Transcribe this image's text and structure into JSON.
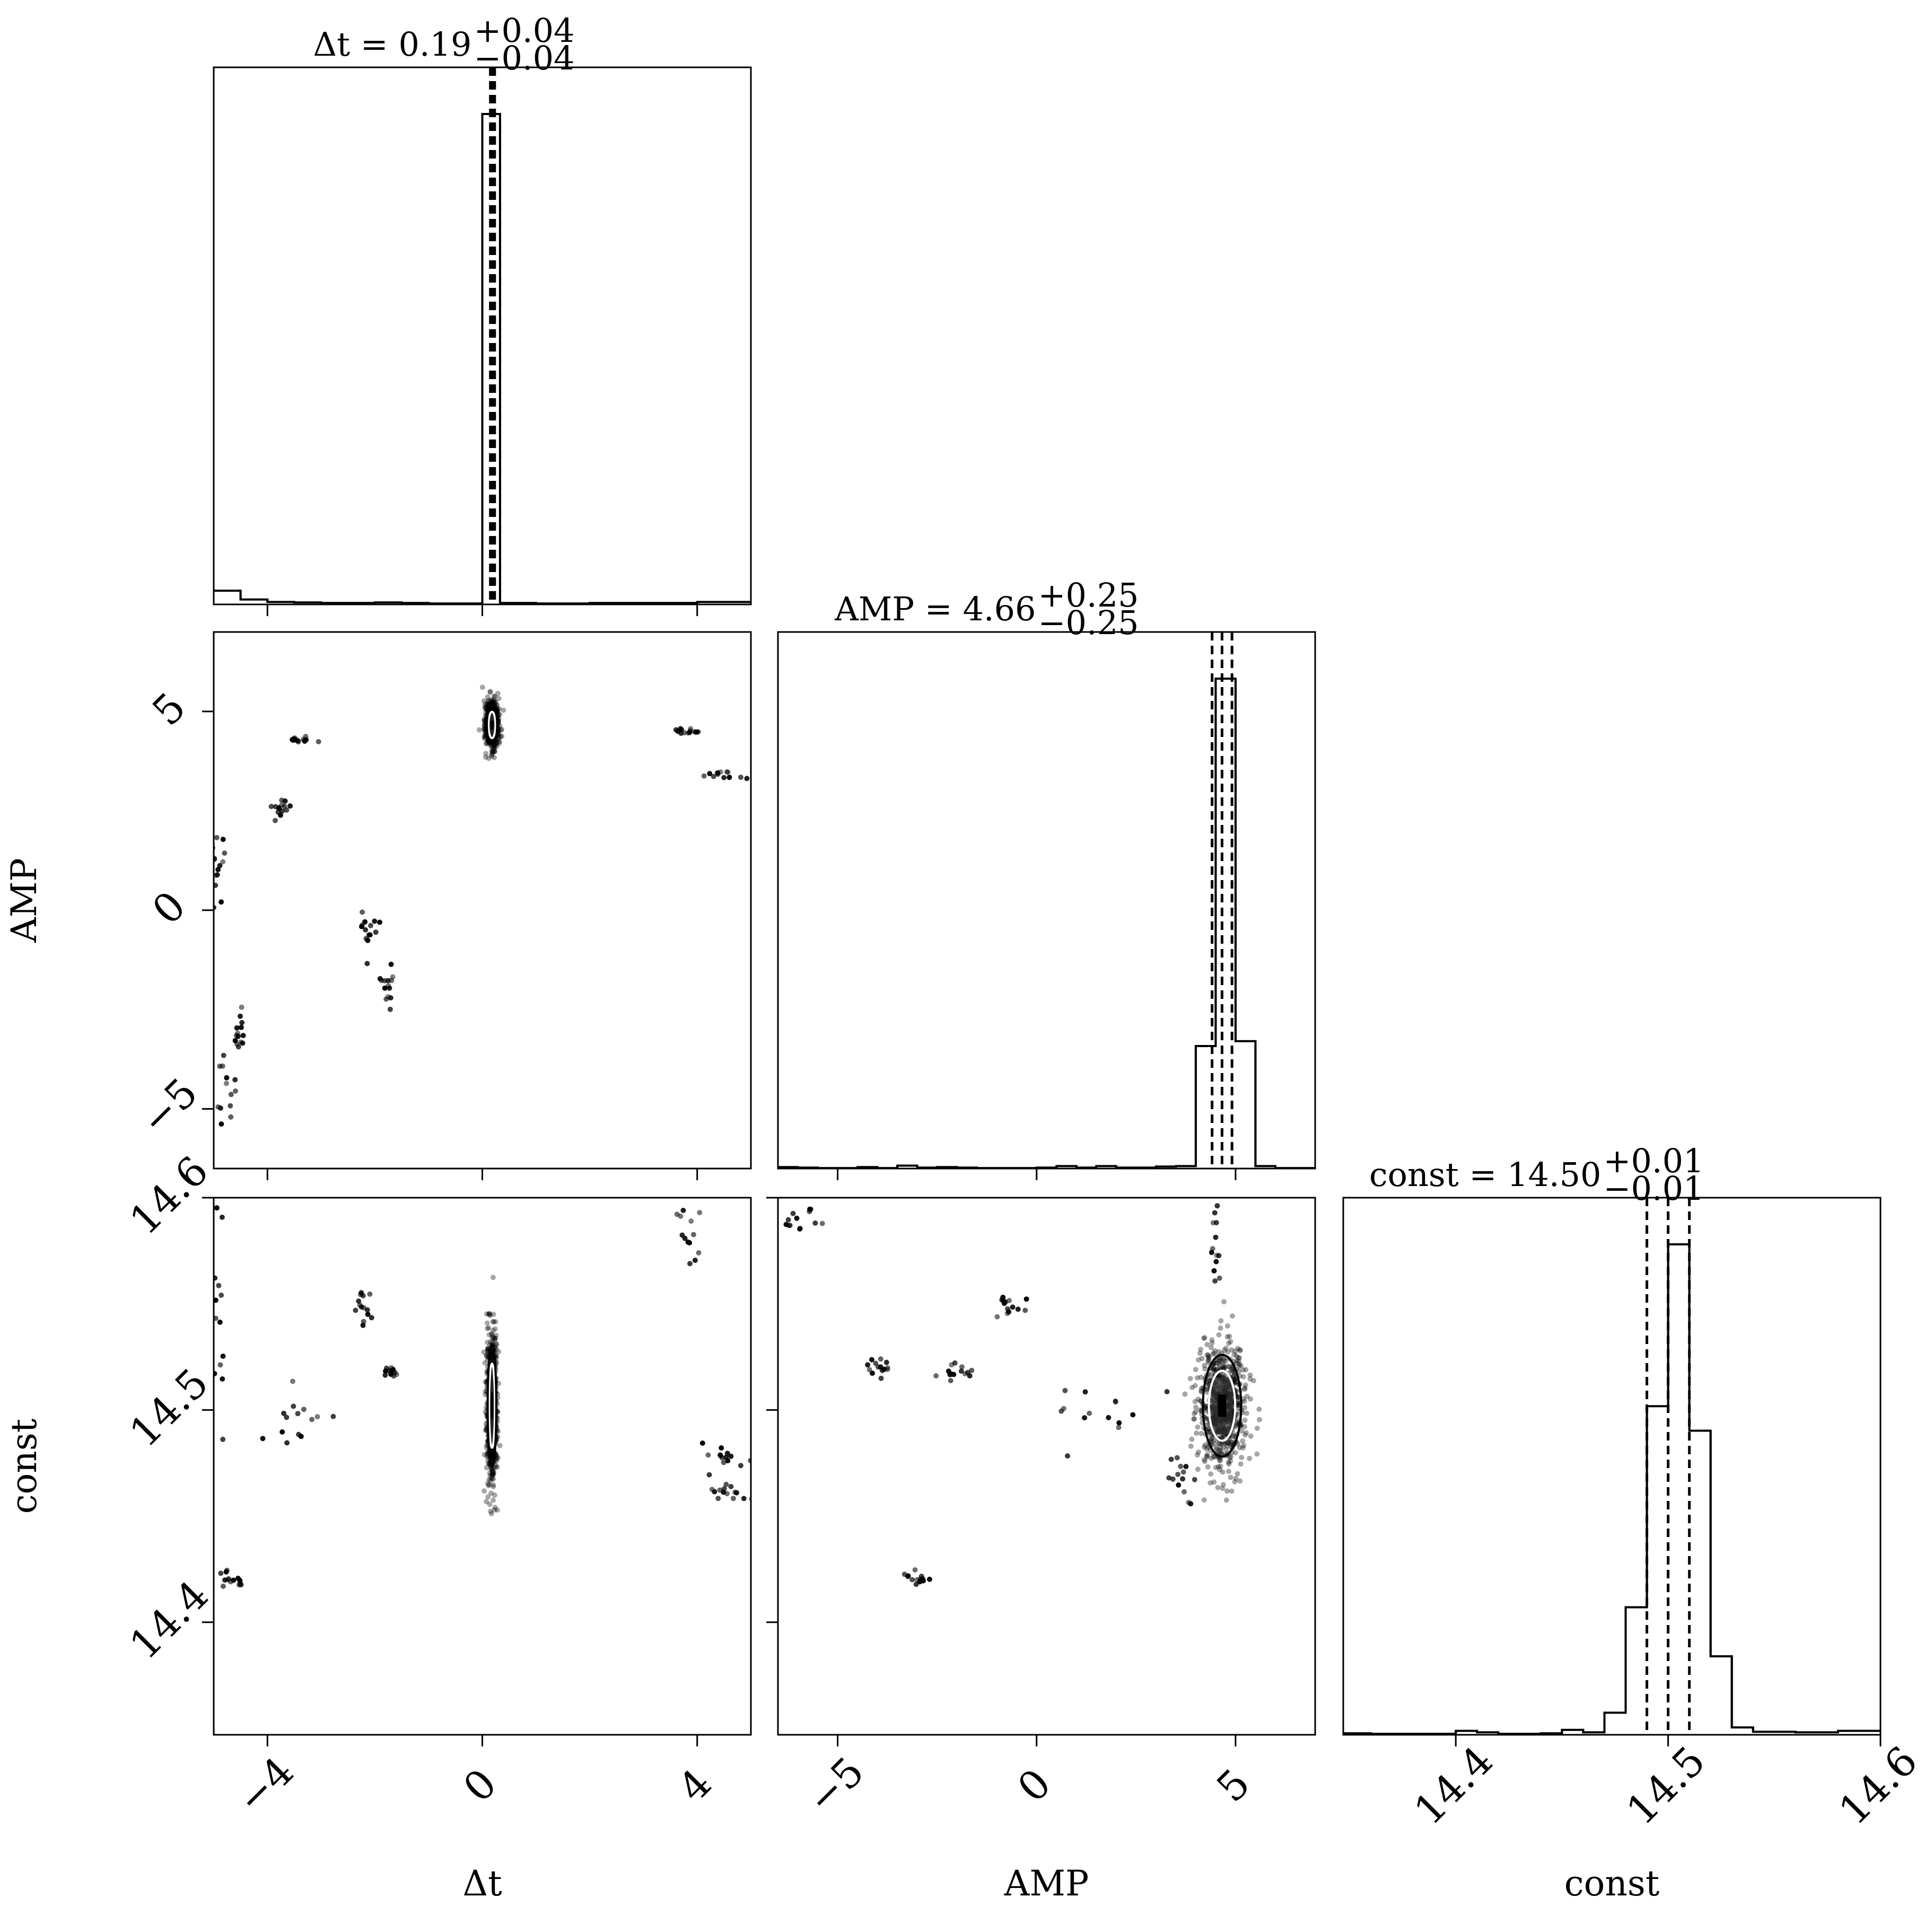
{
  "chart_data": {
    "type": "corner",
    "parameters": [
      {
        "name": "Δt",
        "range": [
          -5,
          5
        ],
        "ticks": [
          -4,
          0,
          4
        ],
        "tick_labels": [
          "−4",
          "0",
          "4"
        ]
      },
      {
        "name": "AMP",
        "range": [
          -6.5,
          7
        ],
        "ticks": [
          -5,
          0,
          5
        ],
        "tick_labels": [
          "−5",
          "0",
          "5"
        ]
      },
      {
        "name": "const",
        "range": [
          14.347,
          14.6
        ],
        "ticks": [
          14.4,
          14.5,
          14.6
        ],
        "tick_labels": [
          "14.4",
          "14.5",
          "14.6"
        ]
      }
    ],
    "titles": [
      {
        "label": "Δt",
        "median": "0.19",
        "plus": "+0.04",
        "minus": "−0.04"
      },
      {
        "label": "AMP",
        "median": "4.66",
        "plus": "+0.25",
        "minus": "−0.25"
      },
      {
        "label": "const",
        "median": "14.50",
        "plus": "+0.01",
        "minus": "−0.01"
      }
    ],
    "quantiles": [
      [
        0.15,
        0.19,
        0.23
      ],
      [
        4.41,
        4.66,
        4.91
      ],
      [
        14.49,
        14.5,
        14.51
      ]
    ],
    "histograms": [
      {
        "bins": [
          [
            -5,
            -4.5,
            2.8
          ],
          [
            -4.5,
            -4,
            1.0
          ],
          [
            -4,
            -3.5,
            0.5
          ],
          [
            -3.5,
            -3,
            0.4
          ],
          [
            -3,
            -2.5,
            0.3
          ],
          [
            -2.5,
            -2,
            0.3
          ],
          [
            -2,
            -1.5,
            0.4
          ],
          [
            -1.5,
            -1,
            0.3
          ],
          [
            -1,
            -0.5,
            0.2
          ],
          [
            -0.5,
            0,
            0.2
          ],
          [
            0,
            0.33,
            100
          ],
          [
            0.33,
            1,
            0.3
          ],
          [
            1,
            2,
            0.2
          ],
          [
            2,
            3,
            0.3
          ],
          [
            3,
            4,
            0.3
          ],
          [
            4,
            5,
            0.5
          ]
        ]
      },
      {
        "bins": [
          [
            -6.5,
            -6,
            0.3
          ],
          [
            -6,
            -5.5,
            0.2
          ],
          [
            -5.5,
            -5,
            0.1
          ],
          [
            -5,
            -4.5,
            0.1
          ],
          [
            -4.5,
            -4,
            0.3
          ],
          [
            -4,
            -3.5,
            0.1
          ],
          [
            -3.5,
            -3,
            0.6
          ],
          [
            -3,
            -2.5,
            0.2
          ],
          [
            -2.5,
            -2,
            0.3
          ],
          [
            -2,
            -1.5,
            0.2
          ],
          [
            -1.5,
            -1,
            0.1
          ],
          [
            -1,
            0,
            0.1
          ],
          [
            0,
            0.5,
            0.2
          ],
          [
            0.5,
            1,
            0.5
          ],
          [
            1,
            1.5,
            0.2
          ],
          [
            1.5,
            2,
            0.5
          ],
          [
            2,
            2.5,
            0.2
          ],
          [
            2.5,
            3,
            0.2
          ],
          [
            3,
            3.5,
            0.4
          ],
          [
            3.5,
            4,
            0.5
          ],
          [
            4,
            4.5,
            25
          ],
          [
            4.5,
            5,
            100
          ],
          [
            5,
            5.5,
            26
          ],
          [
            5.5,
            6,
            0.5
          ],
          [
            6,
            7,
            0.1
          ]
        ]
      },
      {
        "bins": [
          [
            14.347,
            14.36,
            0.3
          ],
          [
            14.36,
            14.38,
            0.2
          ],
          [
            14.38,
            14.4,
            0.2
          ],
          [
            14.4,
            14.41,
            0.8
          ],
          [
            14.41,
            14.42,
            0.5
          ],
          [
            14.42,
            14.44,
            0.2
          ],
          [
            14.44,
            14.45,
            0.3
          ],
          [
            14.45,
            14.46,
            1.0
          ],
          [
            14.46,
            14.47,
            0.5
          ],
          [
            14.47,
            14.48,
            4.5
          ],
          [
            14.48,
            14.49,
            26
          ],
          [
            14.49,
            14.5,
            67
          ],
          [
            14.5,
            14.51,
            100
          ],
          [
            14.51,
            14.52,
            62
          ],
          [
            14.52,
            14.53,
            16
          ],
          [
            14.53,
            14.54,
            1.5
          ],
          [
            14.54,
            14.56,
            0.6
          ],
          [
            14.56,
            14.58,
            0.5
          ],
          [
            14.58,
            14.6,
            0.8
          ]
        ]
      }
    ],
    "scatter": {
      "pairs": [
        {
          "x": "Δt",
          "y": "AMP",
          "clusters": [
            {
              "center": [
                0.18,
                4.66
              ],
              "sd": [
                0.06,
                0.3
              ],
              "kind": "mode"
            },
            {
              "center": [
                -3.35,
                4.3
              ],
              "sd": [
                0.15,
                0.05
              ]
            },
            {
              "center": [
                -3.7,
                2.5
              ],
              "sd": [
                0.15,
                0.15
              ]
            },
            {
              "center": [
                -2.1,
                -0.5
              ],
              "sd": [
                0.1,
                0.35
              ]
            },
            {
              "center": [
                -1.75,
                -1.9
              ],
              "sd": [
                0.07,
                0.25
              ]
            },
            {
              "center": [
                -4.5,
                -3.2
              ],
              "sd": [
                0.12,
                0.3
              ]
            },
            {
              "center": [
                -4.8,
                -4.2
              ],
              "sd": [
                0.1,
                0.5
              ]
            },
            {
              "center": [
                -4.9,
                1.3
              ],
              "sd": [
                0.08,
                0.5
              ]
            },
            {
              "center": [
                3.85,
                4.5
              ],
              "sd": [
                0.15,
                0.05
              ]
            },
            {
              "center": [
                4.6,
                3.4
              ],
              "sd": [
                0.3,
                0.06
              ]
            }
          ]
        },
        {
          "x": "Δt",
          "y": "const",
          "clusters": [
            {
              "center": [
                0.18,
                14.502
              ],
              "sd": [
                0.05,
                0.018
              ],
              "kind": "mode"
            },
            {
              "center": [
                -2.2,
                14.55
              ],
              "sd": [
                0.1,
                0.004
              ]
            },
            {
              "center": [
                -1.7,
                14.518
              ],
              "sd": [
                0.08,
                0.002
              ]
            },
            {
              "center": [
                -3.5,
                14.498
              ],
              "sd": [
                0.3,
                0.008
              ]
            },
            {
              "center": [
                -4.7,
                14.421
              ],
              "sd": [
                0.1,
                0.002
              ]
            },
            {
              "center": [
                -4.9,
                14.55
              ],
              "sd": [
                0.08,
                0.04
              ]
            },
            {
              "center": [
                3.85,
                14.585
              ],
              "sd": [
                0.1,
                0.01
              ]
            },
            {
              "center": [
                4.5,
                14.478
              ],
              "sd": [
                0.25,
                0.003
              ]
            },
            {
              "center": [
                4.6,
                14.46
              ],
              "sd": [
                0.25,
                0.003
              ]
            }
          ]
        },
        {
          "x": "AMP",
          "y": "const",
          "clusters": [
            {
              "center": [
                4.66,
                14.502
              ],
              "sd": [
                0.3,
                0.015
              ],
              "kind": "mode"
            },
            {
              "center": [
                -3.1,
                14.421
              ],
              "sd": [
                0.2,
                0.002
              ]
            },
            {
              "center": [
                -2.0,
                14.518
              ],
              "sd": [
                0.3,
                0.002
              ]
            },
            {
              "center": [
                -4.0,
                14.52
              ],
              "sd": [
                0.2,
                0.002
              ]
            },
            {
              "center": [
                -0.6,
                14.55
              ],
              "sd": [
                0.2,
                0.003
              ]
            },
            {
              "center": [
                1.5,
                14.5
              ],
              "sd": [
                0.8,
                0.008
              ]
            },
            {
              "center": [
                3.6,
                14.465
              ],
              "sd": [
                0.15,
                0.008
              ]
            },
            {
              "center": [
                4.5,
                14.58
              ],
              "sd": [
                0.05,
                0.01
              ]
            },
            {
              "center": [
                -5.8,
                14.59
              ],
              "sd": [
                0.35,
                0.006
              ]
            }
          ]
        }
      ]
    },
    "xlabels": [
      "Δt",
      "AMP",
      "const"
    ],
    "ylabels": [
      "AMP",
      "const"
    ]
  }
}
